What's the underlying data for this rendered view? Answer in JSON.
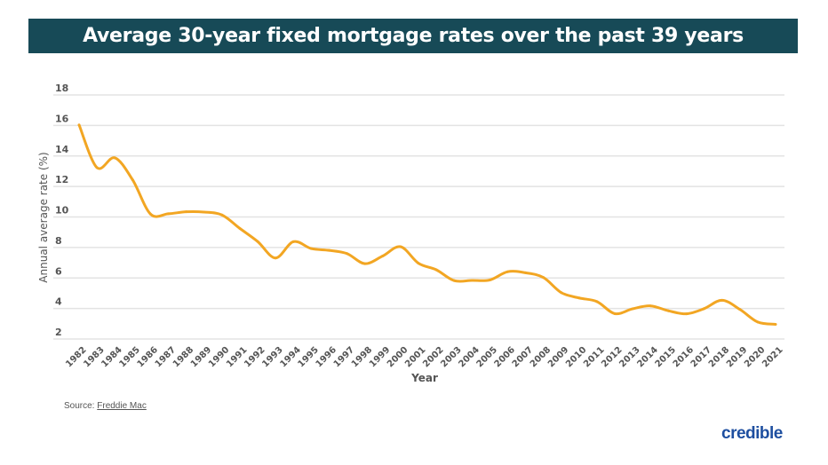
{
  "title": "Average 30-year fixed mortgage rates over the past 39 years",
  "source": {
    "label": "Source:",
    "link": "Freddie Mac"
  },
  "logo": "credible",
  "colors": {
    "title_bar": "#174a57",
    "line": "#f2a623",
    "grid": "#e3e3e3",
    "logo": "#1e4fa0"
  },
  "chart_data": {
    "type": "line",
    "title": "Average 30-year fixed mortgage rates over the past 39 years",
    "xlabel": "Year",
    "ylabel": "Annual average rate (%)",
    "ylim": [
      2,
      18
    ],
    "yticks": [
      18,
      16,
      14,
      12,
      10,
      8,
      6,
      4,
      2
    ],
    "grid": true,
    "x": [
      "1982",
      "1983",
      "1984",
      "1985",
      "1986",
      "1987",
      "1988",
      "1989",
      "1990",
      "1991",
      "1992",
      "1993",
      "1994",
      "1995",
      "1996",
      "1997",
      "1998",
      "1999",
      "2000",
      "2001",
      "2002",
      "2003",
      "2004",
      "2005",
      "2006",
      "2007",
      "2008",
      "2009",
      "2010",
      "2011",
      "2012",
      "2013",
      "2014",
      "2015",
      "2016",
      "2017",
      "2018",
      "2019",
      "2020",
      "2021"
    ],
    "values": [
      16.04,
      13.24,
      13.88,
      12.43,
      10.19,
      10.21,
      10.34,
      10.32,
      10.13,
      9.25,
      8.39,
      7.31,
      8.38,
      7.93,
      7.81,
      7.6,
      6.94,
      7.44,
      8.05,
      6.97,
      6.54,
      5.83,
      5.84,
      5.87,
      6.41,
      6.34,
      6.03,
      5.04,
      4.69,
      4.45,
      3.66,
      3.98,
      4.17,
      3.85,
      3.65,
      3.99,
      4.54,
      3.94,
      3.11,
      2.96
    ]
  }
}
